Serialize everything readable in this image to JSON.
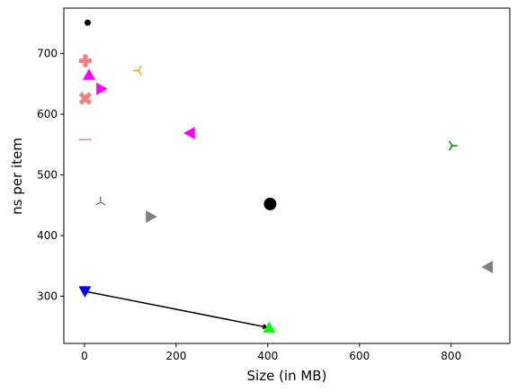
{
  "chart_data": {
    "type": "scatter",
    "xlabel": "Size (in MB)",
    "ylabel": "ns per item",
    "xlim": [
      -45,
      928
    ],
    "ylim": [
      222,
      775
    ],
    "grid": false,
    "x_ticks": [
      0,
      200,
      400,
      600,
      800
    ],
    "y_ticks": [
      300,
      400,
      500,
      600,
      700
    ],
    "points": [
      {
        "x": 7,
        "y": 751,
        "marker": "circle-small",
        "color": "#000000"
      },
      {
        "x": 2,
        "y": 688,
        "marker": "plus-filled",
        "color": "#f08080"
      },
      {
        "x": 118,
        "y": 672,
        "marker": "tri-left",
        "color": "#ffa500"
      },
      {
        "x": 10,
        "y": 665,
        "marker": "triangle-up",
        "color": "#ff00ff"
      },
      {
        "x": 37,
        "y": 642,
        "marker": "triangle-right",
        "color": "#ff00ff"
      },
      {
        "x": 2,
        "y": 626,
        "marker": "x-filled",
        "color": "#f08080"
      },
      {
        "x": 230,
        "y": 569,
        "marker": "triangle-left",
        "color": "#ff00ff"
      },
      {
        "x": 1,
        "y": 558,
        "marker": "hline",
        "color": "#f08080"
      },
      {
        "x": 802,
        "y": 548,
        "marker": "tri-right",
        "color": "#008000"
      },
      {
        "x": 35,
        "y": 455,
        "marker": "tri-down",
        "color": "#808080"
      },
      {
        "x": 405,
        "y": 452,
        "marker": "circle",
        "color": "#000000"
      },
      {
        "x": 145,
        "y": 431,
        "marker": "triangle-right",
        "color": "#808080"
      },
      {
        "x": 880,
        "y": 348,
        "marker": "triangle-left",
        "color": "#808080"
      },
      {
        "x": 1,
        "y": 308,
        "marker": "triangle-down",
        "color": "#0000ff"
      },
      {
        "x": 403,
        "y": 248,
        "marker": "triangle-up",
        "color": "#00ff00"
      }
    ],
    "arrows": [
      {
        "from": [
          1,
          308
        ],
        "to": [
          403,
          248
        ],
        "color": "#000000"
      }
    ]
  }
}
